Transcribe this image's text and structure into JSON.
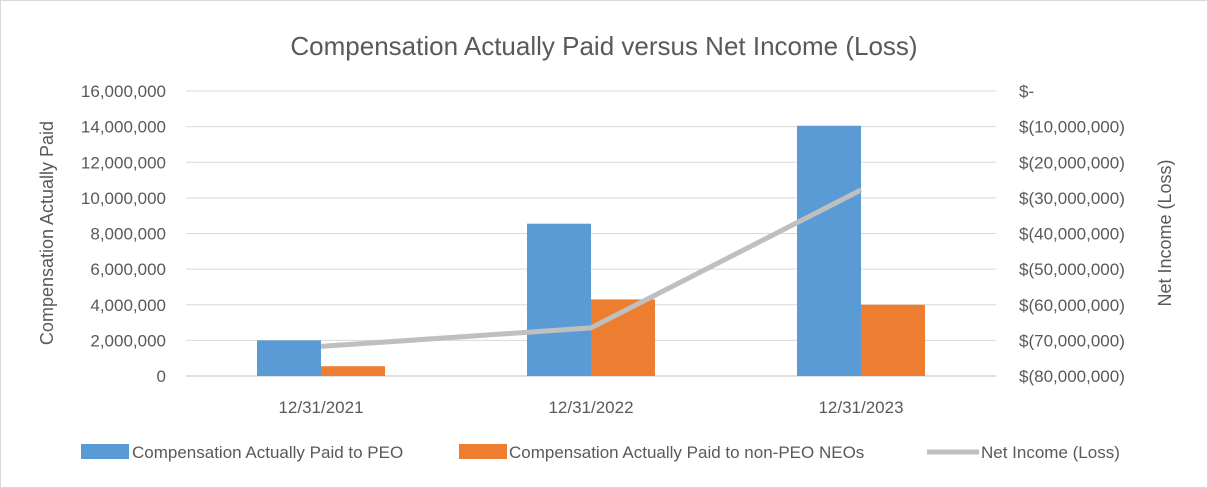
{
  "chart_data": {
    "type": "bar",
    "title": "Compensation Actually Paid versus Net Income (Loss)",
    "categories": [
      "12/31/2021",
      "12/31/2022",
      "12/31/2023"
    ],
    "ylabel": "Compensation Actually Paid",
    "y2label": "Net Income (Loss)",
    "ylim": [
      0,
      16000000
    ],
    "y2lim": [
      -80000000,
      0
    ],
    "yticks": [
      "0",
      "2,000,000",
      "4,000,000",
      "6,000,000",
      "8,000,000",
      "10,000,000",
      "12,000,000",
      "14,000,000",
      "16,000,000"
    ],
    "y2ticks": [
      "$(80,000,000)",
      "$(70,000,000)",
      "$(60,000,000)",
      "$(50,000,000)",
      "$(40,000,000)",
      "$(30,000,000)",
      "$(20,000,000)",
      "$(10,000,000)",
      "$-"
    ],
    "grid": true,
    "legend_position": "bottom",
    "series": [
      {
        "name": "Compensation Actually Paid to PEO",
        "type": "bar",
        "axis": "left",
        "color": "#5b9bd5",
        "values": [
          2000000,
          8550000,
          14050000
        ]
      },
      {
        "name": "Compensation Actually Paid to non-PEO NEOs",
        "type": "bar",
        "axis": "left",
        "color": "#ed7d31",
        "values": [
          550000,
          4300000,
          4000000
        ]
      },
      {
        "name": "Net Income (Loss)",
        "type": "line",
        "axis": "right",
        "color": "#bfbfbf",
        "values": [
          -71700000,
          -66500000,
          -27800000
        ]
      }
    ]
  }
}
